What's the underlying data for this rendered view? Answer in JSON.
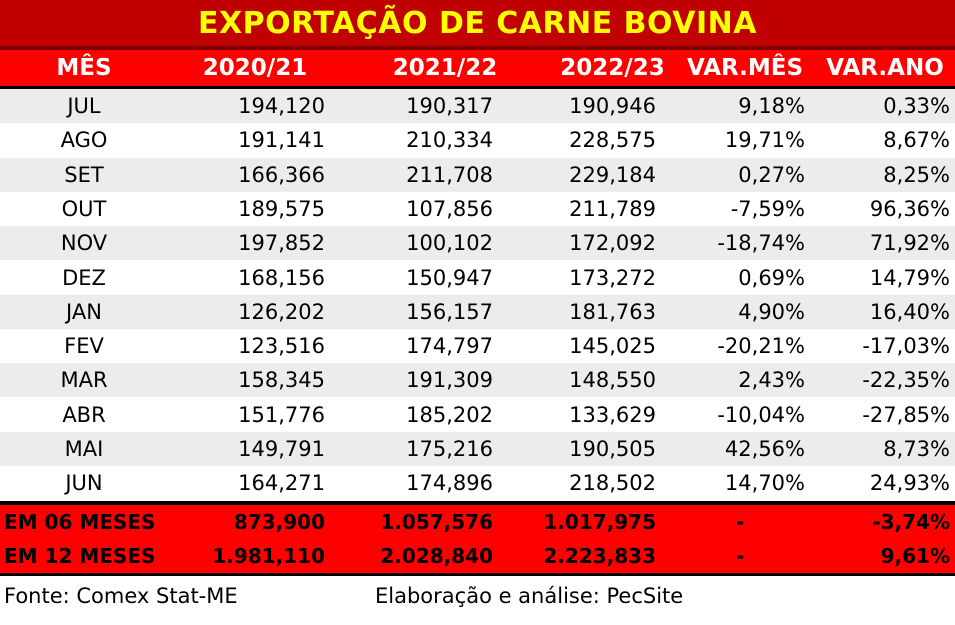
{
  "chart_data": {
    "type": "table",
    "title": "EXPORTAÇÃO DE CARNE BOVINA",
    "columns": [
      "MÊS",
      "2020/21",
      "2021/22",
      "2022/23",
      "VAR.MÊS",
      "VAR.ANO"
    ],
    "rows": [
      [
        "JUL",
        "194,120",
        "190,317",
        "190,946",
        "9,18%",
        "0,33%"
      ],
      [
        "AGO",
        "191,141",
        "210,334",
        "228,575",
        "19,71%",
        "8,67%"
      ],
      [
        "SET",
        "166,366",
        "211,708",
        "229,184",
        "0,27%",
        "8,25%"
      ],
      [
        "OUT",
        "189,575",
        "107,856",
        "211,789",
        "-7,59%",
        "96,36%"
      ],
      [
        "NOV",
        "197,852",
        "100,102",
        "172,092",
        "-18,74%",
        "71,92%"
      ],
      [
        "DEZ",
        "168,156",
        "150,947",
        "173,272",
        "0,69%",
        "14,79%"
      ],
      [
        "JAN",
        "126,202",
        "156,157",
        "181,763",
        "4,90%",
        "16,40%"
      ],
      [
        "FEV",
        "123,516",
        "174,797",
        "145,025",
        "-20,21%",
        "-17,03%"
      ],
      [
        "MAR",
        "158,345",
        "191,309",
        "148,550",
        "2,43%",
        "-22,35%"
      ],
      [
        "ABR",
        "151,776",
        "185,202",
        "133,629",
        "-10,04%",
        "-27,85%"
      ],
      [
        "MAI",
        "149,791",
        "175,216",
        "190,505",
        "42,56%",
        "8,73%"
      ],
      [
        "JUN",
        "164,271",
        "174,896",
        "218,502",
        "14,70%",
        "24,93%"
      ]
    ],
    "totals": [
      [
        "EM 06 MESES",
        "873,900",
        "1.057,576",
        "1.017,975",
        "-",
        "-3,74%"
      ],
      [
        "EM 12 MESES",
        "1.981,110",
        "2.028,840",
        "2.223,833",
        "-",
        "9,61%"
      ]
    ]
  },
  "footer": {
    "source": "Fonte: Comex Stat-ME",
    "analysis": "Elaboração e análise: PecSite"
  },
  "colors": {
    "title_bg": "#c00000",
    "title_text": "#ffff00",
    "header_bg": "#ff0000",
    "header_text": "#ffffff",
    "stripe": "#ececec",
    "total_bg": "#ff0000"
  }
}
